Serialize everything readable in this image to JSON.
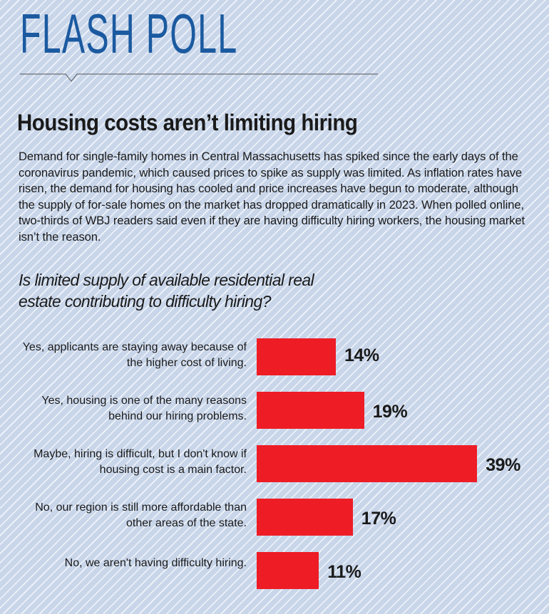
{
  "header": "FLASH POLL",
  "headline": "Housing costs aren’t limiting hiring",
  "body": "Demand for single-family homes in Central Massachusetts has spiked since the early days of the coronavirus pandemic, which caused prices to spike as supply was limited. As inflation rates have risen, the demand for housing has cooled and price increases have begun to moderate, although the supply of for-sale homes on the market has dropped dramatically in 2023. When polled online, two-thirds of WBJ readers said even if they are having difficulty hiring workers, the housing market isn’t the reason.",
  "chart_data": {
    "type": "bar",
    "orientation": "horizontal",
    "title": "Is limited supply of available residential real estate contributing to difficulty hiring?",
    "categories": [
      "Yes, applicants are staying away because of the higher cost of living.",
      "Yes, housing is one of the many reasons behind our hiring problems.",
      "Maybe, hiring is difficult, but I don't know if housing cost is a main factor.",
      "No, our region is still more affordable than other areas of the state.",
      "No, we aren't having difficulty hiring."
    ],
    "values": [
      14,
      19,
      39,
      17,
      11
    ],
    "value_labels": [
      "14%",
      "19%",
      "39%",
      "17%",
      "11%"
    ],
    "color": "#ee1c25"
  }
}
